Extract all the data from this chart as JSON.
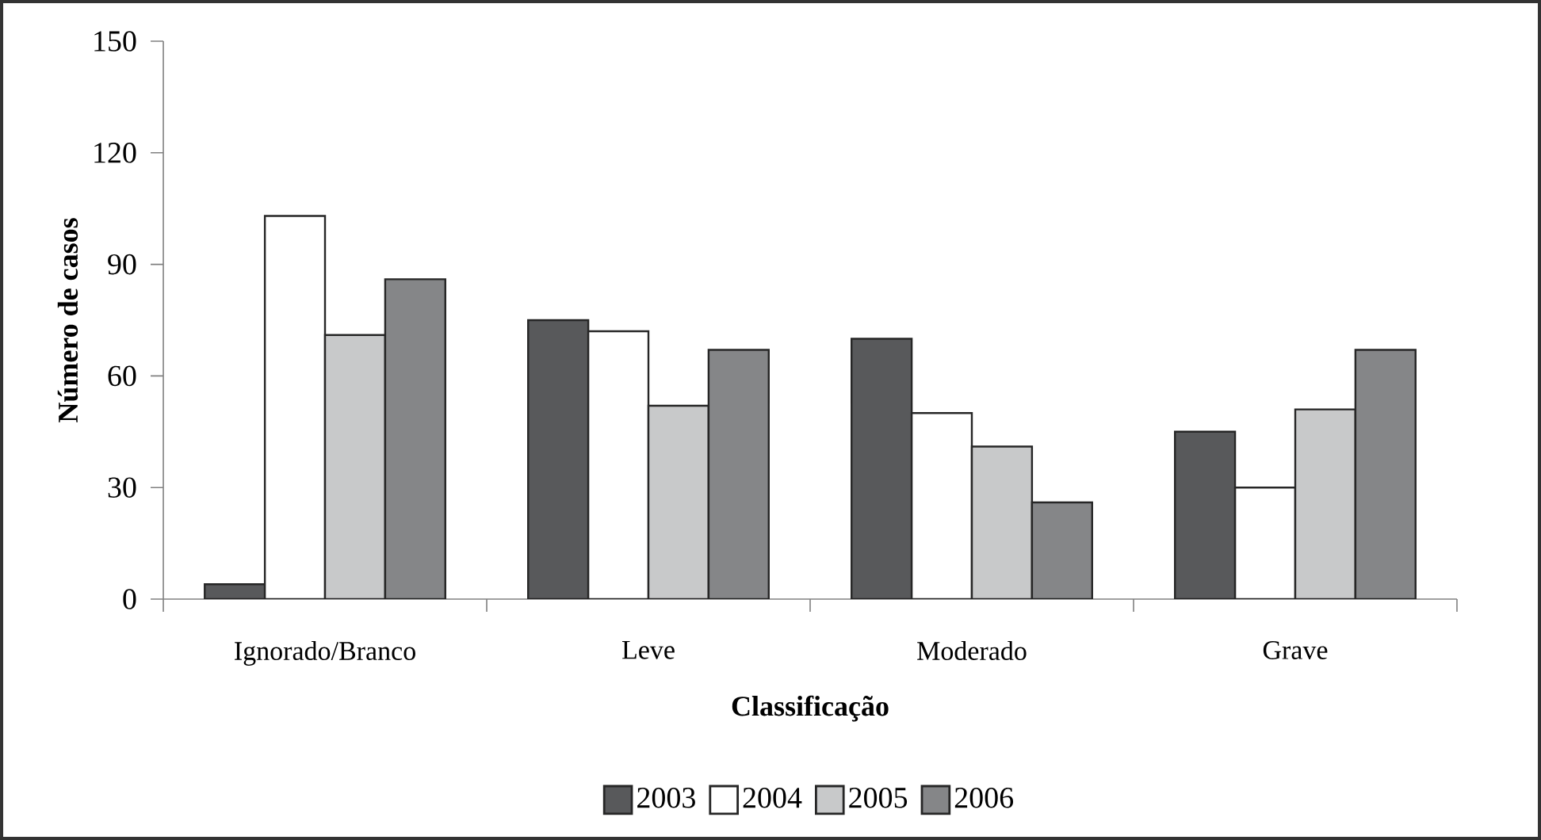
{
  "chart_data": {
    "type": "bar",
    "xlabel": "Classificação",
    "ylabel": "Número de casos",
    "categories": [
      "Ignorado/Branco",
      "Leve",
      "Moderado",
      "Grave"
    ],
    "series": [
      {
        "name": "2003",
        "color": "#58595b",
        "values": [
          4,
          75,
          70,
          45
        ]
      },
      {
        "name": "2004",
        "color": "#ffffff",
        "values": [
          103,
          72,
          50,
          30
        ]
      },
      {
        "name": "2005",
        "color": "#c8c9ca",
        "values": [
          71,
          52,
          41,
          51
        ]
      },
      {
        "name": "2006",
        "color": "#858688",
        "values": [
          86,
          67,
          26,
          67
        ]
      }
    ],
    "ylim": [
      0,
      150
    ],
    "yticks": [
      0,
      30,
      60,
      90,
      120,
      150
    ],
    "grid": false,
    "legend": "bottom"
  }
}
